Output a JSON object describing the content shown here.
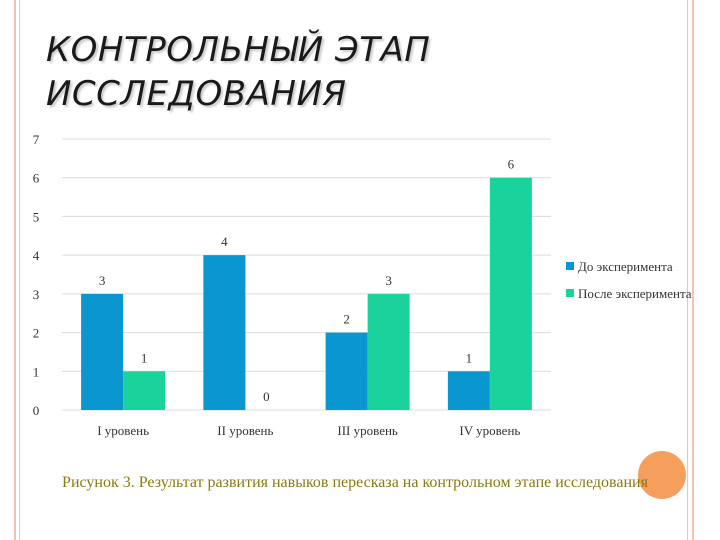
{
  "slide": {
    "title_lines": [
      "КОНТРОЛЬНЫЙ ЭТАП",
      "ИССЛЕДОВАНИЯ"
    ],
    "caption": "Рисунок 3. Результат развития навыков пересказа на контрольном этапе исследования"
  },
  "colors": {
    "frame": "#f2c3b4",
    "accent_circle": "#f58d3f",
    "caption": "#8b7a12"
  },
  "chart_data": {
    "type": "bar",
    "categories": [
      "I уровень",
      "II уровень",
      "III уровень",
      "IV уровень"
    ],
    "series": [
      {
        "name": "До эксперимента",
        "values": [
          3,
          4,
          2,
          1
        ],
        "color": "#0a96cf"
      },
      {
        "name": "После эксперимента",
        "values": [
          1,
          0,
          3,
          6
        ],
        "color": "#1ad39c"
      }
    ],
    "ylim": [
      0,
      7
    ],
    "yticks": [
      0,
      1,
      2,
      3,
      4,
      5,
      6,
      7
    ],
    "grid": true,
    "data_labels": true,
    "legend": "right"
  }
}
